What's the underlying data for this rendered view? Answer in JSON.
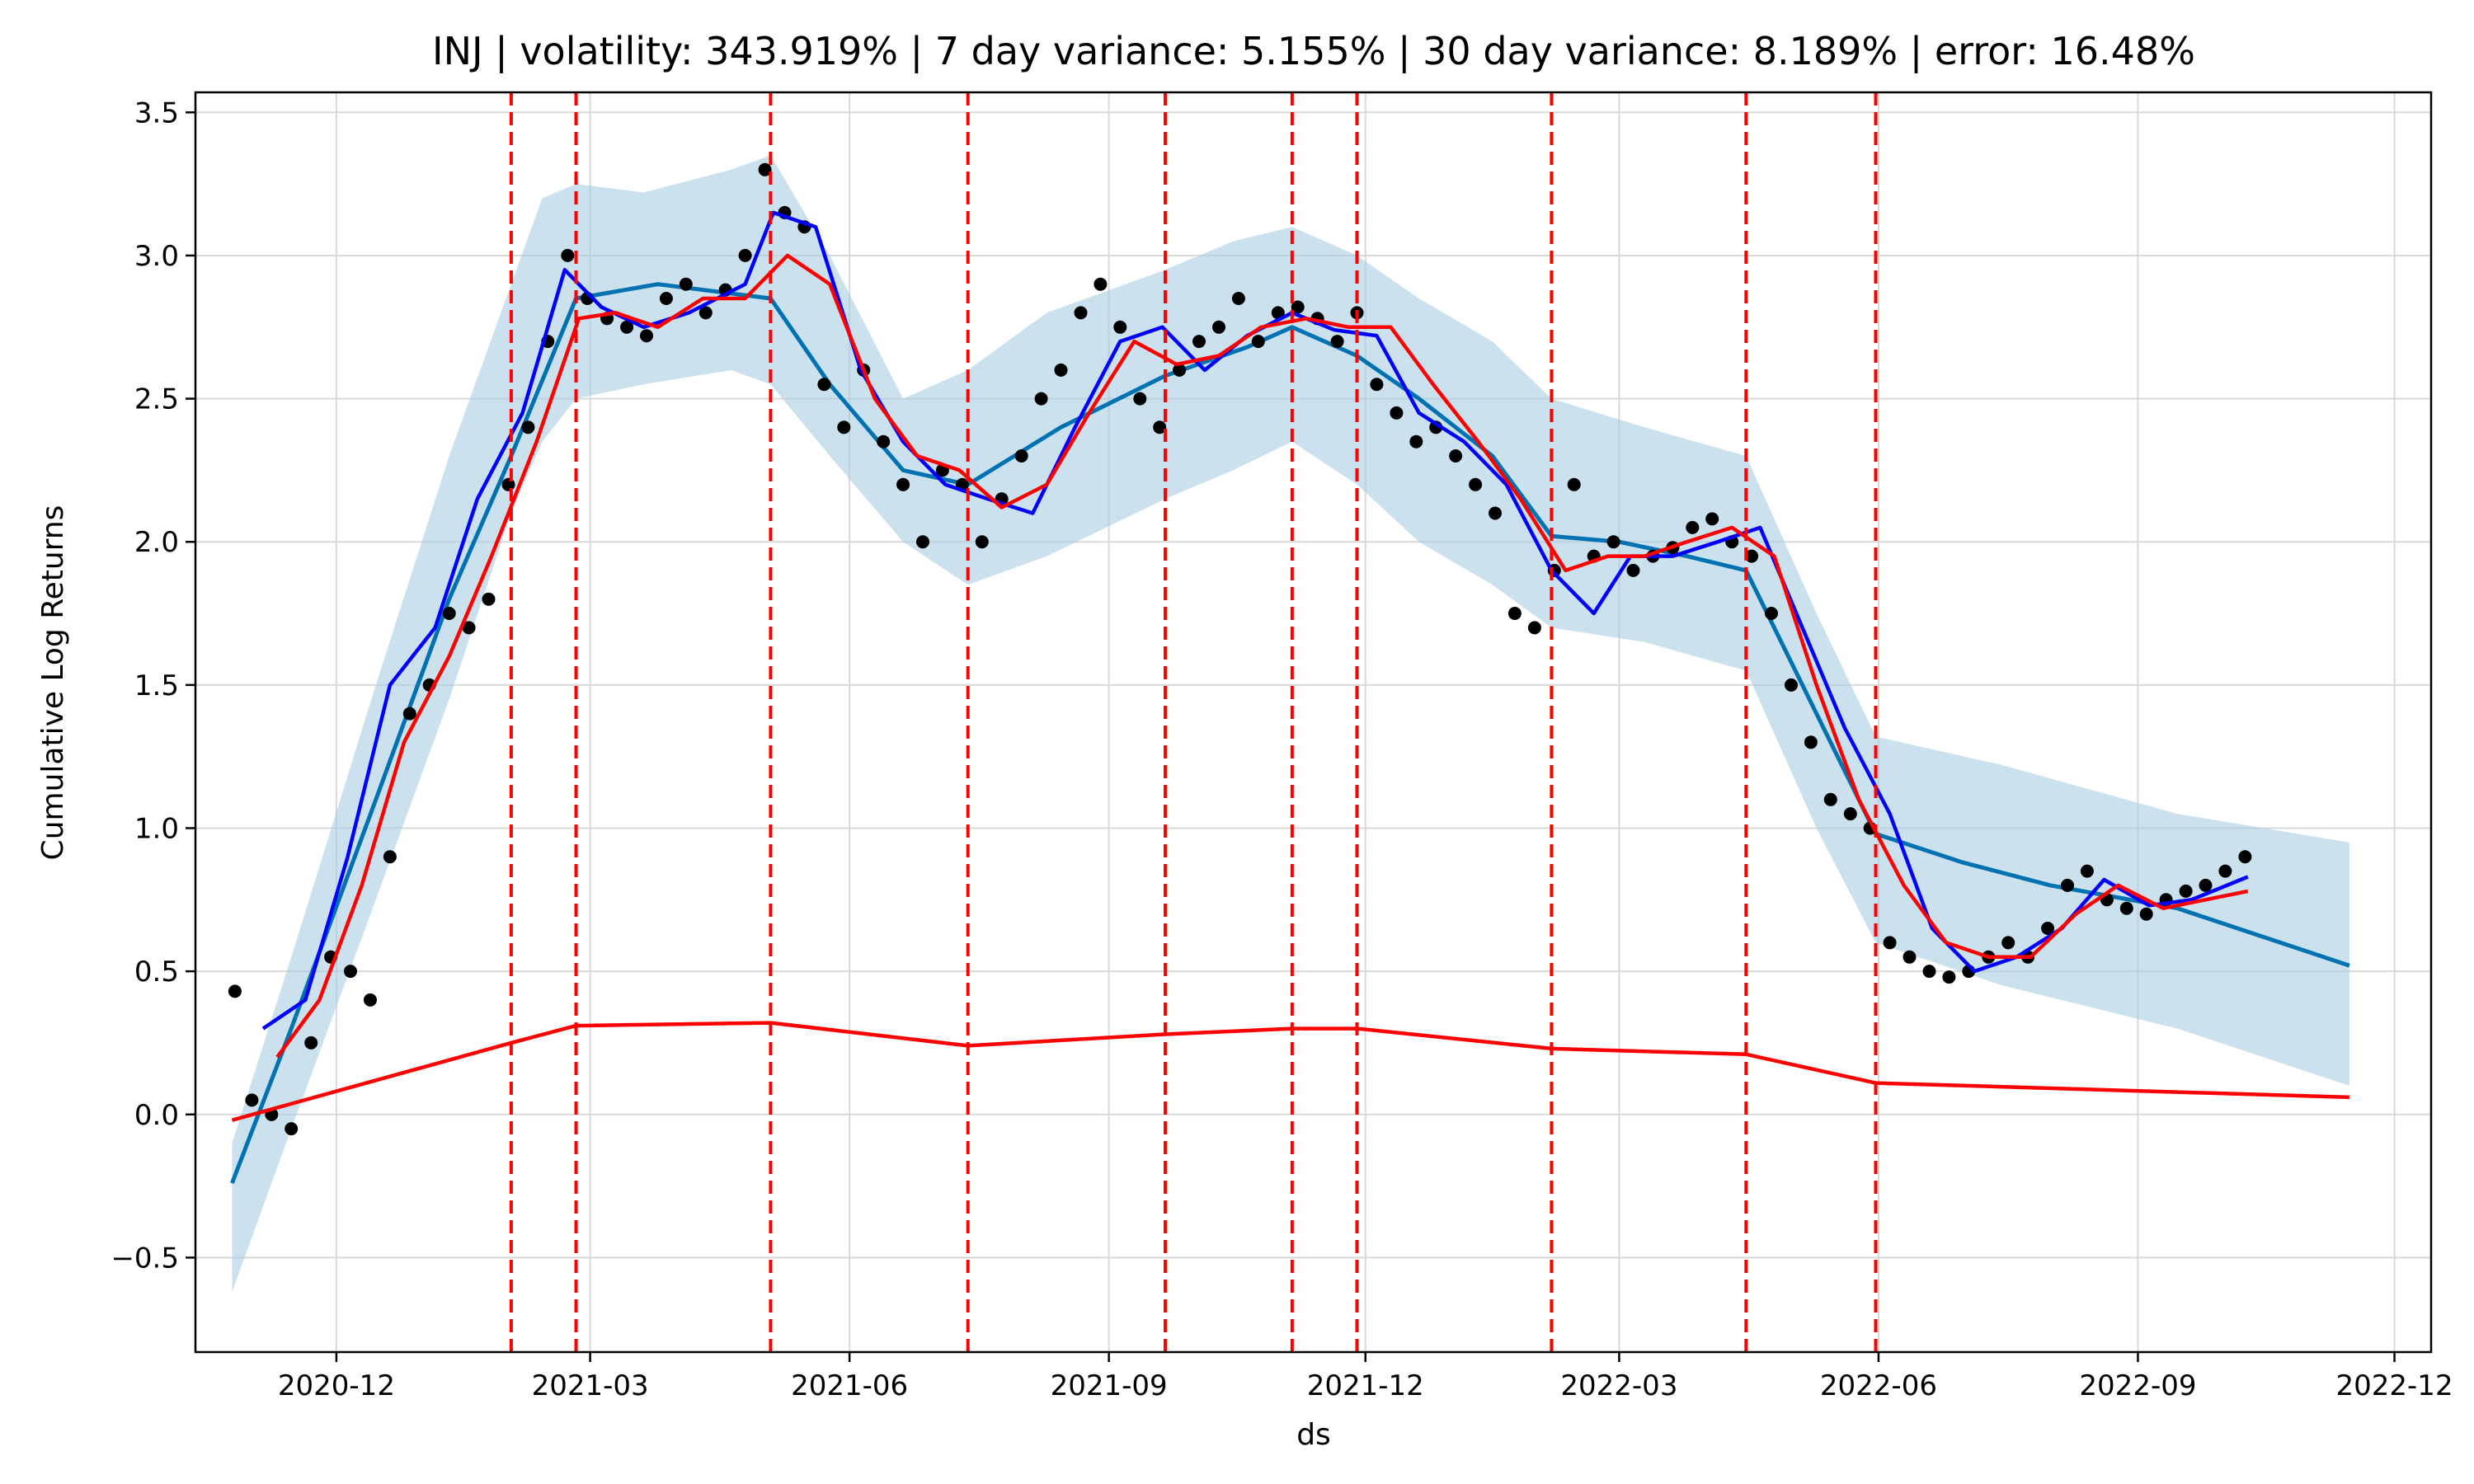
{
  "chart_data": {
    "type": "line",
    "title": "INJ | volatility: 343.919% | 7 day variance: 5.155% | 30 day variance: 8.189% | error: 16.48%",
    "xlabel": "ds",
    "ylabel": "Cumulative Log Returns",
    "xlim": [
      "2020-10-12",
      "2022-12-14"
    ],
    "ylim": [
      -0.83,
      3.57
    ],
    "x_ticks": [
      "2020-12-01",
      "2021-03-01",
      "2021-06-01",
      "2021-09-01",
      "2021-12-01",
      "2022-03-01",
      "2022-06-01",
      "2022-09-01",
      "2022-12-01"
    ],
    "x_tick_labels": [
      "2020-12",
      "2021-03",
      "2021-06",
      "2021-09",
      "2021-12",
      "2022-03",
      "2022-06",
      "2022-09",
      "2022-12"
    ],
    "y_ticks": [
      -0.5,
      0.0,
      0.5,
      1.0,
      1.5,
      2.0,
      2.5,
      3.0,
      3.5
    ],
    "y_tick_labels": [
      "−0.5",
      "0.0",
      "0.5",
      "1.0",
      "1.5",
      "2.0",
      "2.5",
      "3.0",
      "3.5"
    ],
    "grid": true,
    "changepoints": [
      "2021-02-01",
      "2021-02-24",
      "2021-05-04",
      "2021-07-13",
      "2021-09-21",
      "2021-11-05",
      "2021-11-28",
      "2022-02-05",
      "2022-04-15",
      "2022-05-31"
    ],
    "series": [
      {
        "kind": "uncertainty_band",
        "color": "#a9cde3",
        "x": [
          "2020-10-25",
          "2020-11-15",
          "2020-12-15",
          "2021-01-10",
          "2021-02-01",
          "2021-02-12",
          "2021-02-24",
          "2021-03-20",
          "2021-04-20",
          "2021-05-04",
          "2021-05-25",
          "2021-06-20",
          "2021-07-13",
          "2021-08-10",
          "2021-09-21",
          "2021-10-15",
          "2021-11-05",
          "2021-11-28",
          "2021-12-20",
          "2022-01-15",
          "2022-02-05",
          "2022-03-10",
          "2022-04-15",
          "2022-05-10",
          "2022-05-31",
          "2022-07-15",
          "2022-09-15",
          "2022-11-15"
        ],
        "upper": [
          -0.1,
          0.55,
          1.5,
          2.3,
          2.9,
          3.2,
          3.25,
          3.22,
          3.3,
          3.35,
          3.0,
          2.5,
          2.6,
          2.8,
          2.95,
          3.05,
          3.1,
          3.0,
          2.85,
          2.7,
          2.5,
          2.4,
          2.3,
          1.75,
          1.32,
          1.22,
          1.05,
          0.95
        ],
        "lower": [
          -0.62,
          -0.05,
          0.75,
          1.45,
          2.1,
          2.35,
          2.5,
          2.55,
          2.6,
          2.55,
          2.3,
          2.0,
          1.85,
          1.95,
          2.15,
          2.25,
          2.35,
          2.2,
          2.0,
          1.85,
          1.7,
          1.65,
          1.55,
          1.0,
          0.6,
          0.45,
          0.3,
          0.1
        ]
      },
      {
        "kind": "trend_forecast",
        "color": "#0072b2",
        "x": [
          "2020-10-25",
          "2020-11-15",
          "2020-12-15",
          "2021-01-10",
          "2021-02-01",
          "2021-02-24",
          "2021-03-25",
          "2021-05-04",
          "2021-05-25",
          "2021-06-20",
          "2021-07-13",
          "2021-08-15",
          "2021-09-21",
          "2021-10-20",
          "2021-11-05",
          "2021-11-28",
          "2021-12-20",
          "2022-01-15",
          "2022-02-05",
          "2022-03-01",
          "2022-03-25",
          "2022-04-15",
          "2022-05-10",
          "2022-05-31",
          "2022-07-01",
          "2022-08-01",
          "2022-09-15",
          "2022-11-15"
        ],
        "y": [
          -0.24,
          0.3,
          1.1,
          1.8,
          2.3,
          2.85,
          2.9,
          2.85,
          2.55,
          2.25,
          2.2,
          2.4,
          2.58,
          2.68,
          2.75,
          2.65,
          2.5,
          2.3,
          2.02,
          2.0,
          1.95,
          1.9,
          1.4,
          0.98,
          0.88,
          0.8,
          0.72,
          0.52
        ]
      },
      {
        "kind": "moving_average_7d",
        "color": "#0000ff",
        "x": [
          "2020-11-05",
          "2020-11-20",
          "2020-12-05",
          "2020-12-20",
          "2021-01-05",
          "2021-01-20",
          "2021-02-05",
          "2021-02-20",
          "2021-03-05",
          "2021-03-20",
          "2021-04-05",
          "2021-04-25",
          "2021-05-05",
          "2021-05-20",
          "2021-06-05",
          "2021-06-20",
          "2021-07-05",
          "2021-07-20",
          "2021-08-05",
          "2021-08-20",
          "2021-09-05",
          "2021-09-20",
          "2021-10-05",
          "2021-10-20",
          "2021-11-05",
          "2021-11-20",
          "2021-12-05",
          "2021-12-20",
          "2022-01-05",
          "2022-01-20",
          "2022-02-05",
          "2022-02-20",
          "2022-03-05",
          "2022-03-20",
          "2022-04-05",
          "2022-04-20",
          "2022-05-05",
          "2022-05-20",
          "2022-06-05",
          "2022-06-20",
          "2022-07-05",
          "2022-07-20",
          "2022-08-05",
          "2022-08-20",
          "2022-09-05",
          "2022-09-20",
          "2022-10-10"
        ],
        "y": [
          0.3,
          0.4,
          0.9,
          1.5,
          1.7,
          2.15,
          2.45,
          2.95,
          2.82,
          2.75,
          2.8,
          2.9,
          3.15,
          3.1,
          2.6,
          2.35,
          2.2,
          2.15,
          2.1,
          2.4,
          2.7,
          2.75,
          2.6,
          2.72,
          2.8,
          2.74,
          2.72,
          2.45,
          2.35,
          2.2,
          1.9,
          1.75,
          1.95,
          1.95,
          2.0,
          2.05,
          1.7,
          1.35,
          1.05,
          0.65,
          0.5,
          0.55,
          0.65,
          0.82,
          0.73,
          0.75,
          0.83
        ]
      },
      {
        "kind": "moving_average_30d",
        "color": "#ff0000",
        "x": [
          "2020-11-10",
          "2020-11-25",
          "2020-12-10",
          "2020-12-25",
          "2021-01-10",
          "2021-01-25",
          "2021-02-10",
          "2021-02-25",
          "2021-03-10",
          "2021-03-25",
          "2021-04-10",
          "2021-04-25",
          "2021-05-10",
          "2021-05-25",
          "2021-06-10",
          "2021-06-25",
          "2021-07-10",
          "2021-07-25",
          "2021-08-10",
          "2021-08-25",
          "2021-09-10",
          "2021-09-25",
          "2021-10-10",
          "2021-10-25",
          "2021-11-10",
          "2021-11-25",
          "2021-12-10",
          "2021-12-25",
          "2022-01-10",
          "2022-01-25",
          "2022-02-10",
          "2022-02-25",
          "2022-03-10",
          "2022-03-25",
          "2022-04-10",
          "2022-04-25",
          "2022-05-10",
          "2022-05-25",
          "2022-06-10",
          "2022-06-25",
          "2022-07-10",
          "2022-07-25",
          "2022-08-10",
          "2022-08-25",
          "2022-09-10",
          "2022-09-25",
          "2022-10-10"
        ],
        "y": [
          0.2,
          0.4,
          0.8,
          1.3,
          1.6,
          1.95,
          2.35,
          2.78,
          2.8,
          2.75,
          2.85,
          2.85,
          3.0,
          2.9,
          2.5,
          2.3,
          2.25,
          2.12,
          2.2,
          2.45,
          2.7,
          2.62,
          2.65,
          2.75,
          2.78,
          2.75,
          2.75,
          2.55,
          2.35,
          2.15,
          1.9,
          1.95,
          1.95,
          2.0,
          2.05,
          1.95,
          1.5,
          1.1,
          0.8,
          0.6,
          0.55,
          0.55,
          0.7,
          0.8,
          0.72,
          0.75,
          0.78
        ]
      },
      {
        "kind": "changepoint_trend",
        "color": "#ff0000",
        "x": [
          "2020-10-25",
          "2021-02-01",
          "2021-02-24",
          "2021-05-04",
          "2021-07-13",
          "2021-09-21",
          "2021-11-05",
          "2021-11-28",
          "2022-02-05",
          "2022-04-15",
          "2022-05-31",
          "2022-11-15"
        ],
        "y": [
          -0.02,
          0.25,
          0.31,
          0.32,
          0.24,
          0.28,
          0.3,
          0.3,
          0.23,
          0.21,
          0.11,
          0.06
        ]
      },
      {
        "kind": "observed",
        "color": "#000000",
        "x": [
          "2020-10-26",
          "2020-11-01",
          "2020-11-08",
          "2020-11-15",
          "2020-11-22",
          "2020-11-29",
          "2020-12-06",
          "2020-12-13",
          "2020-12-20",
          "2020-12-27",
          "2021-01-03",
          "2021-01-10",
          "2021-01-17",
          "2021-01-24",
          "2021-01-31",
          "2021-02-07",
          "2021-02-14",
          "2021-02-21",
          "2021-02-28",
          "2021-03-07",
          "2021-03-14",
          "2021-03-21",
          "2021-03-28",
          "2021-04-04",
          "2021-04-11",
          "2021-04-18",
          "2021-04-25",
          "2021-05-02",
          "2021-05-09",
          "2021-05-16",
          "2021-05-23",
          "2021-05-30",
          "2021-06-06",
          "2021-06-13",
          "2021-06-20",
          "2021-06-27",
          "2021-07-04",
          "2021-07-11",
          "2021-07-18",
          "2021-07-25",
          "2021-08-01",
          "2021-08-08",
          "2021-08-15",
          "2021-08-22",
          "2021-08-29",
          "2021-09-05",
          "2021-09-12",
          "2021-09-19",
          "2021-09-26",
          "2021-10-03",
          "2021-10-10",
          "2021-10-17",
          "2021-10-24",
          "2021-10-31",
          "2021-11-07",
          "2021-11-14",
          "2021-11-21",
          "2021-11-28",
          "2021-12-05",
          "2021-12-12",
          "2021-12-19",
          "2021-12-26",
          "2022-01-02",
          "2022-01-09",
          "2022-01-16",
          "2022-01-23",
          "2022-01-30",
          "2022-02-06",
          "2022-02-13",
          "2022-02-20",
          "2022-02-27",
          "2022-03-06",
          "2022-03-13",
          "2022-03-20",
          "2022-03-27",
          "2022-04-03",
          "2022-04-10",
          "2022-04-17",
          "2022-04-24",
          "2022-05-01",
          "2022-05-08",
          "2022-05-15",
          "2022-05-22",
          "2022-05-29",
          "2022-06-05",
          "2022-06-12",
          "2022-06-19",
          "2022-06-26",
          "2022-07-03",
          "2022-07-10",
          "2022-07-17",
          "2022-07-24",
          "2022-07-31",
          "2022-08-07",
          "2022-08-14",
          "2022-08-21",
          "2022-08-28",
          "2022-09-04",
          "2022-09-11",
          "2022-09-18",
          "2022-09-25",
          "2022-10-02",
          "2022-10-09"
        ],
        "y": [
          0.43,
          0.05,
          0.0,
          -0.05,
          0.25,
          0.55,
          0.5,
          0.4,
          0.9,
          1.4,
          1.5,
          1.75,
          1.7,
          1.8,
          2.2,
          2.4,
          2.7,
          3.0,
          2.85,
          2.78,
          2.75,
          2.72,
          2.85,
          2.9,
          2.8,
          2.88,
          3.0,
          3.3,
          3.15,
          3.1,
          2.55,
          2.4,
          2.6,
          2.35,
          2.2,
          2.0,
          2.25,
          2.2,
          2.0,
          2.15,
          2.3,
          2.5,
          2.6,
          2.8,
          2.9,
          2.75,
          2.5,
          2.4,
          2.6,
          2.7,
          2.75,
          2.85,
          2.7,
          2.8,
          2.82,
          2.78,
          2.7,
          2.8,
          2.55,
          2.45,
          2.35,
          2.4,
          2.3,
          2.2,
          2.1,
          1.75,
          1.7,
          1.9,
          2.2,
          1.95,
          2.0,
          1.9,
          1.95,
          1.98,
          2.05,
          2.08,
          2.0,
          1.95,
          1.75,
          1.5,
          1.3,
          1.1,
          1.05,
          1.0,
          0.6,
          0.55,
          0.5,
          0.48,
          0.5,
          0.55,
          0.6,
          0.55,
          0.65,
          0.8,
          0.85,
          0.75,
          0.72,
          0.7,
          0.75,
          0.78,
          0.8,
          0.85,
          0.9
        ]
      }
    ]
  }
}
